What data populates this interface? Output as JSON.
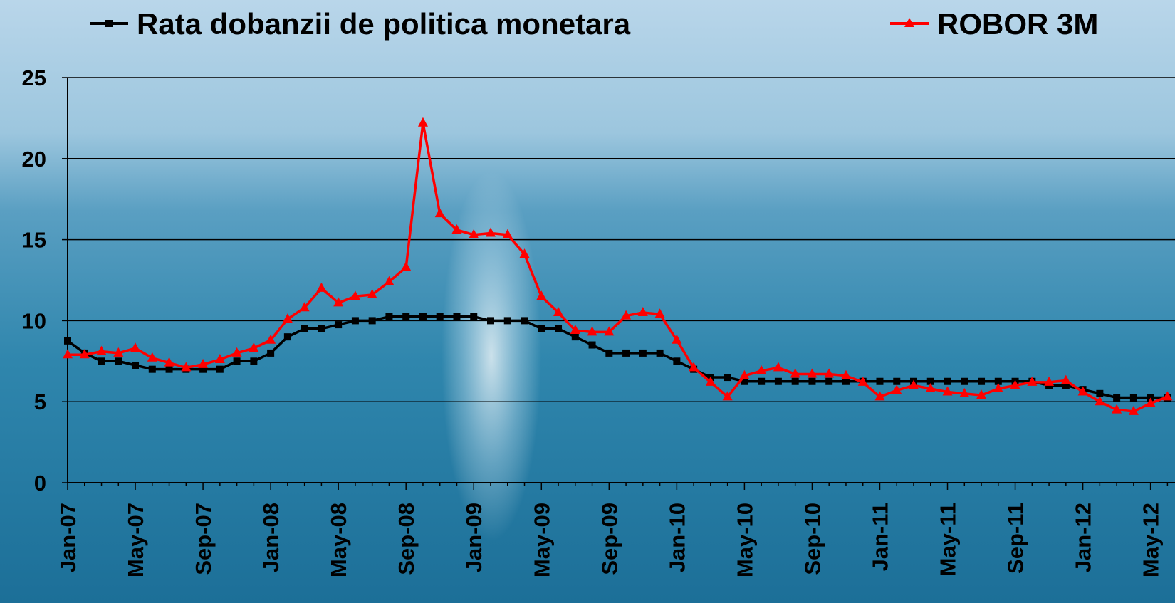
{
  "chart_data": {
    "type": "line",
    "categories": [
      "Jan-07",
      null,
      null,
      null,
      "May-07",
      null,
      null,
      null,
      "Sep-07",
      null,
      null,
      null,
      "Jan-08",
      null,
      null,
      null,
      "May-08",
      null,
      null,
      null,
      "Sep-08",
      null,
      null,
      null,
      "Jan-09",
      null,
      null,
      null,
      "May-09",
      null,
      null,
      null,
      "Sep-09",
      null,
      null,
      null,
      "Jan-10",
      null,
      null,
      null,
      "May-10",
      null,
      null,
      null,
      "Sep-10",
      null,
      null,
      null,
      "Jan-11",
      null,
      null,
      null,
      "May-11",
      null,
      null,
      null,
      "Sep-11",
      null,
      null,
      null,
      "Jan-12",
      null,
      null,
      null,
      "May-12",
      null
    ],
    "series": [
      {
        "name": "Rata dobanzii de politica monetara",
        "color": "#000000",
        "marker": "square",
        "values": [
          8.75,
          8,
          7.5,
          7.5,
          7.25,
          7,
          7,
          7,
          7,
          7,
          7.5,
          7.5,
          8,
          9,
          9.5,
          9.5,
          9.75,
          10,
          10,
          10.25,
          10.25,
          10.25,
          10.25,
          10.25,
          10.25,
          10,
          10,
          10,
          9.5,
          9.5,
          9,
          8.5,
          8,
          8,
          8,
          8,
          7.5,
          7,
          6.5,
          6.5,
          6.25,
          6.25,
          6.25,
          6.25,
          6.25,
          6.25,
          6.25,
          6.25,
          6.25,
          6.25,
          6.25,
          6.25,
          6.25,
          6.25,
          6.25,
          6.25,
          6.25,
          6.25,
          6,
          6,
          5.75,
          5.5,
          5.25,
          5.25,
          5.25,
          5.25
        ]
      },
      {
        "name": "ROBOR 3M",
        "color": "#ff0000",
        "marker": "triangle",
        "values": [
          7.9,
          7.9,
          8.1,
          8,
          8.3,
          7.7,
          7.4,
          7.1,
          7.3,
          7.6,
          8,
          8.3,
          8.8,
          10.1,
          10.8,
          12,
          11.1,
          11.5,
          11.6,
          12.4,
          13.3,
          22.2,
          16.6,
          15.6,
          15.3,
          15.4,
          15.3,
          14.1,
          11.5,
          10.5,
          9.4,
          9.3,
          9.3,
          10.3,
          10.5,
          10.4,
          8.8,
          7.1,
          6.2,
          5.3,
          6.6,
          6.9,
          7.1,
          6.7,
          6.7,
          6.7,
          6.6,
          6.2,
          5.3,
          5.7,
          6,
          5.8,
          5.6,
          5.5,
          5.4,
          5.8,
          6,
          6.2,
          6.2,
          6.3,
          5.6,
          5,
          4.5,
          4.4,
          4.9,
          5.3
        ]
      }
    ],
    "ylim": [
      0,
      25
    ],
    "yticks": [
      0,
      5,
      10,
      15,
      20,
      25
    ],
    "grid": true,
    "legend": "top"
  }
}
